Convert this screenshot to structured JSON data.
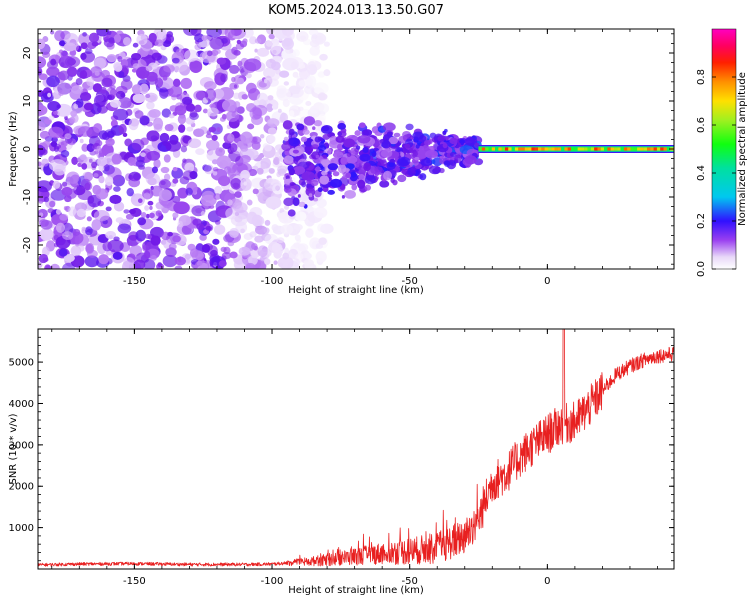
{
  "figure_title": "KOM5.2024.013.13.50.G07",
  "colors": {
    "snr_line": "#e82020",
    "axes": "#000000",
    "background": "#ffffff"
  },
  "chart_data": [
    {
      "type": "heatmap",
      "xlabel": "Height of straight line (km)",
      "ylabel": "Frequency (Hz)",
      "xlim": [
        -185,
        46
      ],
      "ylim": [
        -25,
        25
      ],
      "xticks": [
        -150,
        -100,
        -50,
        0
      ],
      "yticks": [
        -20,
        -10,
        0,
        10,
        20
      ],
      "grid": false,
      "colorbar": {
        "label": "Normalized spectral amplitude",
        "range": [
          0.0,
          1.0
        ],
        "ticks": [
          "0.0",
          "0.2",
          "0.4",
          "0.6",
          "0.8"
        ],
        "colormap": "gist_ncar-like (white → purple → blue → cyan → green → yellow → red → magenta)"
      },
      "features": [
        {
          "description": "diffuse noise",
          "x_range": [
            -185,
            -95
          ],
          "freq_range": [
            -25,
            25
          ],
          "amplitude": 0.1
        },
        {
          "description": "converging spectral band",
          "x_range": [
            -95,
            -25
          ],
          "freq_range": [
            -10,
            8
          ],
          "amplitude": 0.2
        },
        {
          "description": "narrow carrier line",
          "x_range": [
            -25,
            46
          ],
          "freq_hz": 0,
          "amplitude": 0.9
        }
      ]
    },
    {
      "type": "line",
      "xlabel": "Height of straight line (km)",
      "ylabel": "SNR (10 * v/v)",
      "xlim": [
        -185,
        46
      ],
      "ylim": [
        0,
        5800
      ],
      "xticks": [
        -150,
        -100,
        -50,
        0
      ],
      "yticks": [
        1000,
        2000,
        3000,
        4000,
        5000
      ],
      "grid": false,
      "series": [
        {
          "x": [
            -185,
            -170,
            -150,
            -130,
            -110,
            -100,
            -90,
            -80,
            -70,
            -60,
            -50,
            -40,
            -30,
            -25,
            -20,
            -15,
            -10,
            -5,
            0,
            5,
            10,
            15,
            20,
            25,
            30,
            35,
            40,
            46
          ],
          "y": [
            100,
            120,
            130,
            110,
            110,
            120,
            160,
            220,
            300,
            380,
            430,
            500,
            800,
            1200,
            2100,
            2300,
            2700,
            3000,
            3250,
            3500,
            3550,
            3900,
            4300,
            4700,
            4900,
            5050,
            5150,
            5200
          ]
        }
      ],
      "annotations": [
        {
          "description": "spike",
          "x": 6,
          "y": 5800
        }
      ]
    }
  ]
}
